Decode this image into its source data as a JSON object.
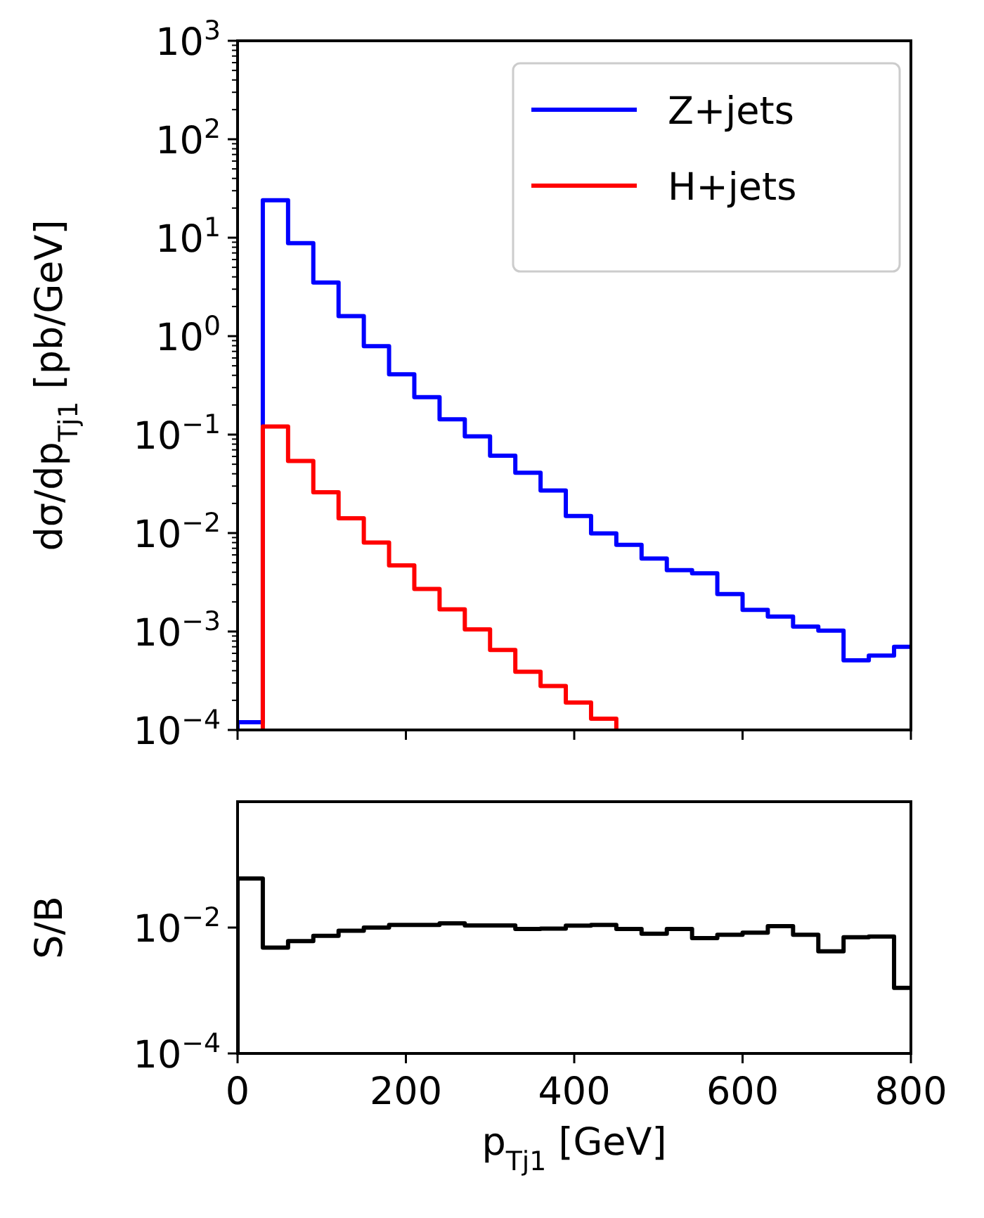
{
  "chart_data": [
    {
      "type": "histogram",
      "ylabel": "dσ/dp$_{Tj1}$ [pb/GeV]",
      "bins": [
        0,
        30,
        60,
        90,
        120,
        150,
        180,
        210,
        240,
        270,
        300,
        330,
        360,
        390,
        420,
        450,
        480,
        510,
        540,
        570,
        600,
        630,
        660,
        690,
        720,
        750,
        780,
        810
      ],
      "series": [
        {
          "name": "Z+jets",
          "color": "#0000ff",
          "values": [
            0.00012,
            24,
            8.8,
            3.5,
            1.6,
            0.79,
            0.41,
            0.24,
            0.143,
            0.096,
            0.061,
            0.041,
            0.027,
            0.0149,
            0.0099,
            0.0076,
            0.0055,
            0.0042,
            0.0039,
            0.0024,
            0.00166,
            0.00142,
            0.00112,
            0.00102,
            0.00051,
            0.00057,
            0.0007
          ]
        },
        {
          "name": "H+jets",
          "color": "#ff0000",
          "bins": [
            30,
            60,
            90,
            120,
            150,
            180,
            210,
            240,
            270,
            300,
            330,
            360,
            390,
            420,
            450
          ],
          "values": [
            0.121,
            0.054,
            0.026,
            0.0141,
            0.008,
            0.0047,
            0.0027,
            0.00168,
            0.00105,
            0.00065,
            0.00039,
            0.00028,
            0.00019,
            0.00013
          ]
        }
      ],
      "xlim": [
        0,
        800
      ],
      "xticks": [
        0,
        200,
        400,
        600,
        800
      ],
      "ylim": [
        0.0001,
        1000
      ],
      "yticks": [
        {
          "value": 0.0001,
          "label": "10$^{−4}$"
        },
        {
          "value": 0.001,
          "label": "10$^{−3}$"
        },
        {
          "value": 0.01,
          "label": "10$^{−2}$"
        },
        {
          "value": 0.1,
          "label": "10$^{−1}$"
        },
        {
          "value": 1,
          "label": "10$^{0}$"
        },
        {
          "value": 10,
          "label": "10$^{1}$"
        },
        {
          "value": 100,
          "label": "10$^{2}$"
        },
        {
          "value": 1000,
          "label": "10$^{3}$"
        }
      ],
      "log": true,
      "legend": "top right",
      "tick_labels": "y"
    },
    {
      "type": "histogram",
      "xlabel": "p$_{Tj1}$ [GeV]",
      "ylabel": "S/B",
      "bins": [
        0,
        30,
        60,
        90,
        120,
        150,
        180,
        210,
        240,
        270,
        300,
        330,
        360,
        390,
        420,
        450,
        480,
        510,
        540,
        570,
        600,
        630,
        660,
        690,
        720,
        750,
        780,
        810
      ],
      "series": [
        {
          "color": "#000000",
          "values": [
            0.06,
            0.0048,
            0.0061,
            0.0074,
            0.0089,
            0.01,
            0.011,
            0.011,
            0.0117,
            0.0108,
            0.0108,
            0.0095,
            0.0096,
            0.0107,
            0.011,
            0.0095,
            0.008,
            0.0095,
            0.0068,
            0.0077,
            0.0083,
            0.0105,
            0.0077,
            0.0042,
            0.007,
            0.0072,
            0.0011
          ]
        }
      ],
      "xlim": [
        0,
        800
      ],
      "xticks": [
        0,
        200,
        400,
        600,
        800
      ],
      "ylim": [
        0.0001,
        1
      ],
      "yticks": [
        {
          "value": 0.0001,
          "label": "10$^{−4}$"
        },
        {
          "value": 0.01,
          "label": "10$^{−2}$"
        }
      ],
      "log": true
    }
  ]
}
